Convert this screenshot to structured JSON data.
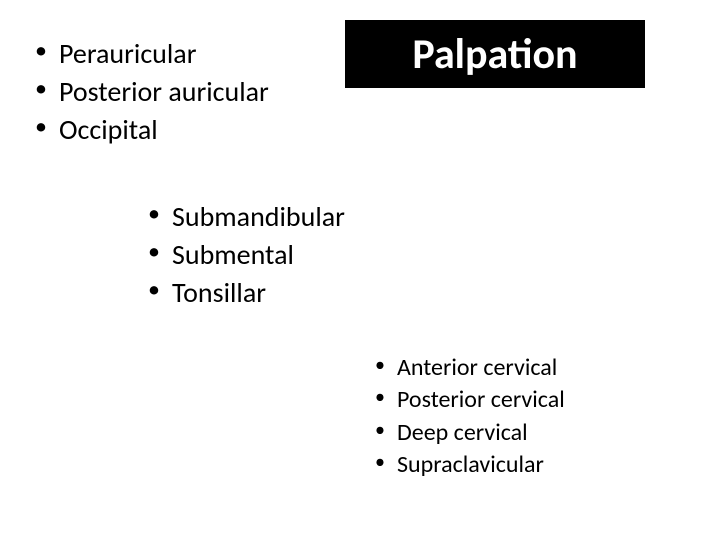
{
  "title": {
    "text": "Palpation",
    "background_color": "#000000",
    "text_color": "#ffffff",
    "fontsize": 42,
    "font_weight": "bold"
  },
  "group1": {
    "fontsize": 28,
    "text_color": "#000000",
    "items": [
      "Perauricular",
      "Posterior auricular",
      "Occipital"
    ]
  },
  "group2": {
    "fontsize": 28,
    "text_color": "#000000",
    "items": [
      "Submandibular",
      "Submental",
      "Tonsillar"
    ]
  },
  "group3": {
    "fontsize": 24,
    "text_color": "#000000",
    "items": [
      "Anterior cervical",
      "Posterior cervical",
      "Deep cervical",
      "Supraclavicular"
    ]
  },
  "background_color": "#ffffff"
}
